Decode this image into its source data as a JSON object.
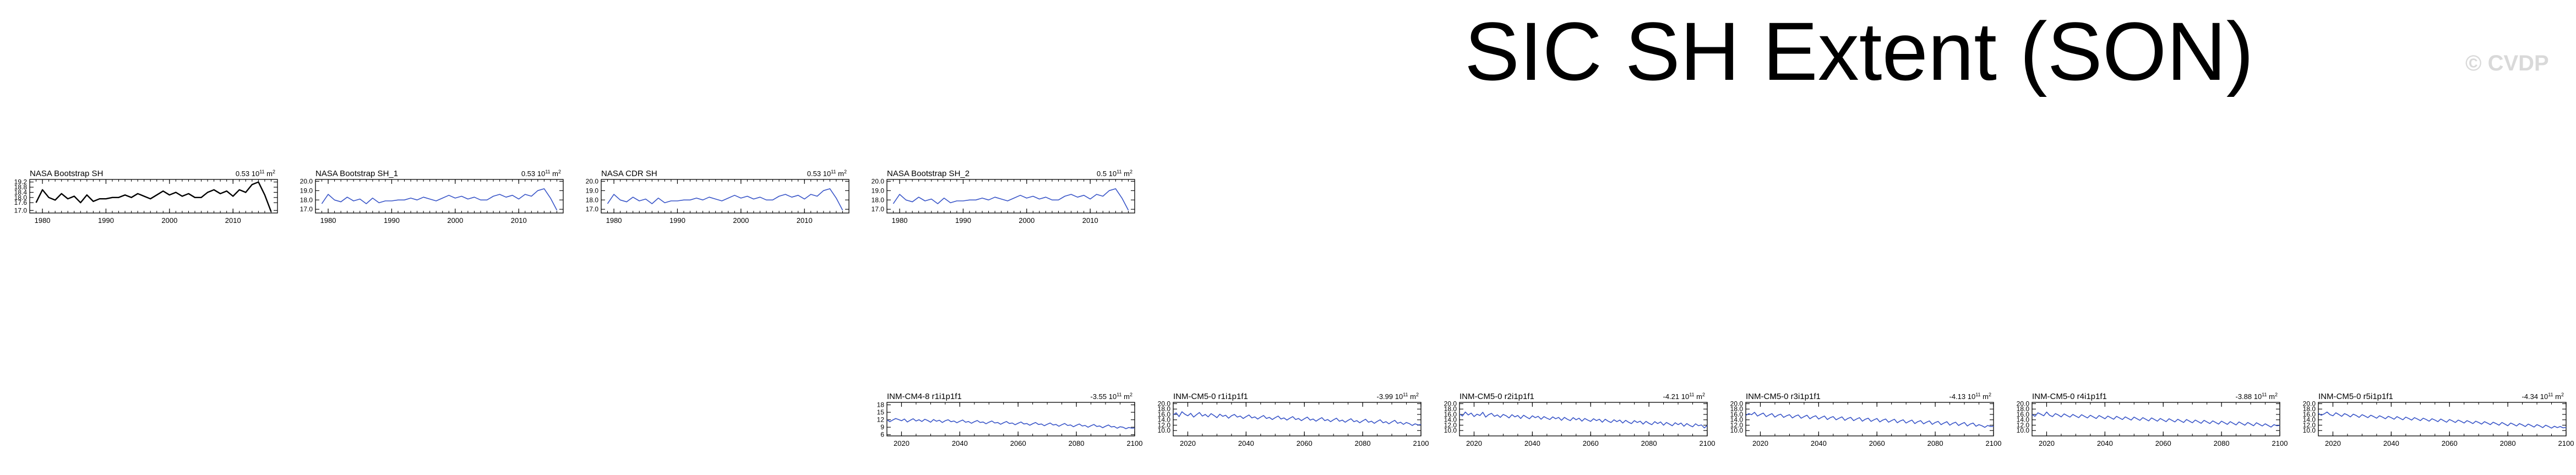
{
  "title": "SIC SH Extent (SON)",
  "watermark": "© CVDP",
  "colors": {
    "obs_reference": "#000000",
    "series": "#3a56c8"
  },
  "chart_data": [
    {
      "type": "line",
      "title": "NASA Bootstrap SH",
      "trend_label": "0.53 10¹¹ m²",
      "trend_base": "0.53 10",
      "trend_exp": "11",
      "trend_unit": " m",
      "trend_unit_exp": "2",
      "color": "#000000",
      "xlim": [
        1978,
        2017
      ],
      "ylim": [
        16.8,
        19.4
      ],
      "x_ticks": [
        1980,
        1990,
        2000,
        2010
      ],
      "y_ticks": [
        "17.0",
        "17.6",
        "18.0",
        "18.4",
        "18.8",
        "19.2"
      ],
      "x": [
        1979,
        1980,
        1981,
        1982,
        1983,
        1984,
        1985,
        1986,
        1987,
        1988,
        1989,
        1990,
        1991,
        1992,
        1993,
        1994,
        1995,
        1996,
        1997,
        1998,
        1999,
        2000,
        2001,
        2002,
        2003,
        2004,
        2005,
        2006,
        2007,
        2008,
        2009,
        2010,
        2011,
        2012,
        2013,
        2014,
        2015,
        2016
      ],
      "values": [
        17.6,
        18.6,
        18.0,
        17.8,
        18.3,
        17.9,
        18.1,
        17.6,
        18.2,
        17.7,
        17.9,
        17.9,
        18.0,
        18.0,
        18.2,
        18.0,
        18.3,
        18.1,
        17.9,
        18.2,
        18.5,
        18.2,
        18.4,
        18.1,
        18.3,
        18.0,
        18.0,
        18.4,
        18.6,
        18.3,
        18.5,
        18.1,
        18.6,
        18.4,
        19.0,
        19.2,
        18.2,
        16.9
      ]
    },
    {
      "type": "line",
      "title": "NASA Bootstrap SH_1",
      "trend_label": "0.53 10¹¹ m²",
      "trend_base": "0.53 10",
      "trend_exp": "11",
      "trend_unit": " m",
      "trend_unit_exp": "2",
      "color": "#3a56c8",
      "xlim": [
        1978,
        2017
      ],
      "ylim": [
        16.6,
        20.2
      ],
      "x_ticks": [
        1980,
        1990,
        2000,
        2010
      ],
      "y_ticks": [
        "17.0",
        "18.0",
        "19.0",
        "20.0"
      ],
      "x": [
        1979,
        1980,
        1981,
        1982,
        1983,
        1984,
        1985,
        1986,
        1987,
        1988,
        1989,
        1990,
        1991,
        1992,
        1993,
        1994,
        1995,
        1996,
        1997,
        1998,
        1999,
        2000,
        2001,
        2002,
        2003,
        2004,
        2005,
        2006,
        2007,
        2008,
        2009,
        2010,
        2011,
        2012,
        2013,
        2014,
        2015,
        2016
      ],
      "values": [
        17.6,
        18.6,
        18.0,
        17.8,
        18.3,
        17.9,
        18.1,
        17.6,
        18.2,
        17.7,
        17.9,
        17.9,
        18.0,
        18.0,
        18.2,
        18.0,
        18.3,
        18.1,
        17.9,
        18.2,
        18.5,
        18.2,
        18.4,
        18.1,
        18.3,
        18.0,
        18.0,
        18.4,
        18.6,
        18.3,
        18.5,
        18.1,
        18.6,
        18.4,
        19.0,
        19.2,
        18.2,
        16.9
      ]
    },
    {
      "type": "line",
      "title": "NASA CDR SH",
      "trend_label": "0.53 10¹¹ m²",
      "trend_base": "0.53 10",
      "trend_exp": "11",
      "trend_unit": " m",
      "trend_unit_exp": "2",
      "color": "#3a56c8",
      "xlim": [
        1978,
        2017
      ],
      "ylim": [
        16.6,
        20.2
      ],
      "x_ticks": [
        1980,
        1990,
        2000,
        2010
      ],
      "y_ticks": [
        "17.0",
        "18.0",
        "19.0",
        "20.0"
      ],
      "x": [
        1979,
        1980,
        1981,
        1982,
        1983,
        1984,
        1985,
        1986,
        1987,
        1988,
        1989,
        1990,
        1991,
        1992,
        1993,
        1994,
        1995,
        1996,
        1997,
        1998,
        1999,
        2000,
        2001,
        2002,
        2003,
        2004,
        2005,
        2006,
        2007,
        2008,
        2009,
        2010,
        2011,
        2012,
        2013,
        2014,
        2015,
        2016
      ],
      "values": [
        17.6,
        18.6,
        18.0,
        17.8,
        18.3,
        17.9,
        18.1,
        17.6,
        18.2,
        17.7,
        17.9,
        17.9,
        18.0,
        18.0,
        18.2,
        18.0,
        18.3,
        18.1,
        17.9,
        18.2,
        18.5,
        18.2,
        18.4,
        18.1,
        18.3,
        18.0,
        18.0,
        18.4,
        18.6,
        18.3,
        18.5,
        18.1,
        18.6,
        18.4,
        19.0,
        19.2,
        18.2,
        16.9
      ]
    },
    {
      "type": "line",
      "title": "NASA Bootstrap SH_2",
      "trend_label": "0.5 10¹¹ m²",
      "trend_base": "0.5 10",
      "trend_exp": "11",
      "trend_unit": " m",
      "trend_unit_exp": "2",
      "color": "#3a56c8",
      "xlim": [
        1978,
        2017
      ],
      "ylim": [
        16.6,
        20.2
      ],
      "x_ticks": [
        1980,
        1990,
        2000,
        2010
      ],
      "y_ticks": [
        "17.0",
        "18.0",
        "19.0",
        "20.0"
      ],
      "x": [
        1979,
        1980,
        1981,
        1982,
        1983,
        1984,
        1985,
        1986,
        1987,
        1988,
        1989,
        1990,
        1991,
        1992,
        1993,
        1994,
        1995,
        1996,
        1997,
        1998,
        1999,
        2000,
        2001,
        2002,
        2003,
        2004,
        2005,
        2006,
        2007,
        2008,
        2009,
        2010,
        2011,
        2012,
        2013,
        2014,
        2015,
        2016
      ],
      "values": [
        17.6,
        18.6,
        18.0,
        17.8,
        18.3,
        17.9,
        18.1,
        17.6,
        18.2,
        17.7,
        17.9,
        17.9,
        18.0,
        18.0,
        18.2,
        18.0,
        18.3,
        18.1,
        17.9,
        18.2,
        18.5,
        18.2,
        18.4,
        18.1,
        18.3,
        18.0,
        18.0,
        18.4,
        18.6,
        18.3,
        18.5,
        18.1,
        18.6,
        18.4,
        19.0,
        19.2,
        18.2,
        16.9
      ]
    },
    {
      "type": "line",
      "title": "INM-CM4-8 r1i1p1f1",
      "trend_label": "-3.55 10¹¹ m²",
      "trend_base": "-3.55 10",
      "trend_exp": "11",
      "trend_unit": " m",
      "trend_unit_exp": "2",
      "color": "#3a56c8",
      "xlim": [
        2015,
        2100
      ],
      "ylim": [
        5.5,
        19
      ],
      "x_ticks": [
        2020,
        2040,
        2060,
        2080,
        2100
      ],
      "y_ticks": [
        "6",
        "9",
        "12",
        "15",
        "18"
      ],
      "x_start": 2015,
      "values": [
        12.0,
        11.2,
        11.9,
        12.5,
        12.1,
        11.6,
        12.3,
        11.1,
        11.8,
        12.4,
        11.5,
        12.0,
        11.3,
        12.2,
        11.7,
        11.0,
        12.1,
        11.4,
        11.8,
        10.9,
        11.6,
        12.0,
        11.2,
        11.5,
        10.8,
        11.4,
        11.9,
        11.0,
        11.3,
        10.6,
        11.2,
        11.7,
        10.9,
        11.1,
        10.4,
        11.0,
        11.5,
        10.7,
        10.9,
        10.2,
        10.8,
        11.3,
        10.5,
        10.7,
        10.0,
        10.6,
        11.1,
        10.3,
        10.5,
        9.8,
        10.4,
        10.9,
        10.1,
        10.3,
        9.6,
        10.2,
        10.7,
        9.9,
        10.1,
        9.4,
        10.0,
        10.5,
        9.7,
        9.9,
        9.2,
        9.8,
        10.3,
        9.5,
        9.7,
        9.0,
        9.6,
        10.1,
        9.3,
        9.5,
        8.8,
        9.4,
        9.9,
        9.1,
        9.3,
        8.6,
        9.2,
        9.0,
        8.4,
        8.9,
        8.6,
        8.7
      ]
    },
    {
      "type": "line",
      "title": "INM-CM5-0 r1i1p1f1",
      "trend_label": "-3.99 10¹¹ m²",
      "trend_base": "-3.99 10",
      "trend_exp": "11",
      "trend_unit": " m",
      "trend_unit_exp": "2",
      "color": "#3a56c8",
      "xlim": [
        2015,
        2100
      ],
      "ylim": [
        8,
        20.5
      ],
      "x_ticks": [
        2020,
        2040,
        2060,
        2080,
        2100
      ],
      "y_ticks": [
        "10.0",
        "12.0",
        "14.0",
        "16.0",
        "18.0",
        "20.0"
      ],
      "x_start": 2015,
      "values": [
        15.8,
        16.6,
        15.2,
        17.0,
        16.1,
        15.5,
        16.4,
        15.0,
        15.9,
        16.7,
        15.4,
        16.0,
        15.1,
        16.3,
        15.6,
        14.8,
        16.1,
        15.3,
        15.7,
        14.6,
        15.5,
        16.0,
        15.0,
        15.4,
        14.5,
        15.2,
        15.8,
        14.7,
        15.1,
        14.3,
        15.0,
        15.6,
        14.5,
        14.9,
        14.1,
        14.8,
        15.4,
        14.3,
        14.7,
        13.9,
        14.6,
        15.2,
        14.1,
        14.5,
        13.7,
        14.4,
        15.0,
        13.9,
        14.3,
        13.5,
        14.2,
        14.8,
        13.7,
        14.1,
        13.3,
        14.0,
        14.6,
        13.5,
        13.9,
        13.1,
        13.8,
        14.4,
        13.3,
        13.7,
        12.9,
        13.6,
        14.2,
        13.1,
        13.5,
        12.7,
        13.4,
        14.0,
        12.9,
        13.3,
        12.5,
        13.2,
        13.8,
        12.7,
        13.1,
        12.3,
        13.0,
        12.6,
        11.9,
        12.5,
        12.1,
        12.2
      ]
    },
    {
      "type": "line",
      "title": "INM-CM5-0 r2i1p1f1",
      "trend_label": "-4.21 10¹¹ m²",
      "trend_base": "-4.21 10",
      "trend_exp": "11",
      "trend_unit": " m",
      "trend_unit_exp": "2",
      "color": "#3a56c8",
      "xlim": [
        2015,
        2100
      ],
      "ylim": [
        8,
        20.5
      ],
      "x_ticks": [
        2020,
        2040,
        2060,
        2080,
        2100
      ],
      "y_ticks": [
        "10.0",
        "12.0",
        "14.0",
        "16.0",
        "18.0",
        "20.0"
      ],
      "x_start": 2015,
      "values": [
        16.2,
        15.4,
        16.9,
        15.8,
        16.5,
        15.2,
        16.1,
        15.6,
        16.8,
        15.0,
        15.9,
        16.4,
        15.3,
        15.8,
        14.9,
        16.0,
        15.5,
        14.7,
        15.9,
        15.1,
        15.6,
        14.5,
        15.7,
        15.0,
        14.4,
        15.5,
        14.8,
        15.3,
        14.2,
        15.2,
        14.6,
        14.1,
        15.1,
        14.4,
        14.9,
        13.8,
        14.9,
        14.2,
        13.7,
        14.8,
        14.0,
        14.6,
        13.5,
        14.5,
        13.9,
        13.4,
        14.4,
        13.7,
        14.2,
        13.1,
        14.2,
        13.5,
        13.0,
        14.0,
        13.3,
        13.9,
        12.8,
        13.8,
        13.1,
        12.6,
        13.7,
        13.0,
        13.5,
        12.4,
        13.4,
        12.7,
        12.2,
        13.3,
        12.6,
        13.2,
        12.0,
        13.0,
        12.4,
        11.8,
        12.9,
        12.2,
        12.8,
        11.6,
        12.6,
        11.9,
        11.4,
        12.5,
        11.8,
        12.1,
        11.0,
        11.9
      ]
    },
    {
      "type": "line",
      "title": "INM-CM5-0 r3i1p1f1",
      "trend_label": "-4.13 10¹¹ m²",
      "trend_base": "-4.13 10",
      "trend_exp": "11",
      "trend_unit": " m",
      "trend_unit_exp": "2",
      "color": "#3a56c8",
      "xlim": [
        2015,
        2100
      ],
      "ylim": [
        8,
        20.5
      ],
      "x_ticks": [
        2020,
        2040,
        2060,
        2080,
        2100
      ],
      "y_ticks": [
        "10.0",
        "12.0",
        "14.0",
        "16.0",
        "18.0",
        "20.0"
      ],
      "x_start": 2015,
      "values": [
        15.6,
        16.3,
        15.9,
        16.8,
        15.4,
        16.0,
        16.5,
        15.2,
        15.8,
        16.3,
        15.0,
        15.7,
        16.1,
        14.9,
        15.5,
        15.9,
        14.7,
        15.4,
        15.8,
        14.6,
        15.2,
        15.7,
        14.4,
        15.1,
        15.5,
        14.3,
        14.9,
        15.4,
        14.1,
        14.8,
        15.2,
        14.0,
        14.6,
        15.1,
        13.8,
        14.5,
        14.9,
        13.7,
        14.3,
        14.8,
        13.5,
        14.2,
        14.6,
        13.4,
        14.0,
        14.5,
        13.2,
        13.9,
        14.3,
        13.1,
        13.7,
        14.2,
        12.9,
        13.6,
        14.0,
        12.8,
        13.4,
        13.9,
        12.6,
        13.3,
        13.7,
        12.5,
        13.1,
        13.6,
        12.3,
        13.0,
        13.4,
        12.2,
        12.8,
        13.3,
        12.0,
        12.7,
        13.1,
        11.9,
        12.5,
        13.0,
        11.7,
        12.4,
        12.8,
        11.6,
        12.2,
        11.8,
        11.2,
        11.9,
        11.5,
        11.6
      ]
    },
    {
      "type": "line",
      "title": "INM-CM5-0 r4i1p1f1",
      "trend_label": "-3.88 10¹¹ m²",
      "trend_base": "-3.88 10",
      "trend_exp": "11",
      "trend_unit": " m",
      "trend_unit_exp": "2",
      "color": "#3a56c8",
      "xlim": [
        2015,
        2100
      ],
      "ylim": [
        8,
        20.5
      ],
      "x_ticks": [
        2020,
        2040,
        2060,
        2080,
        2100
      ],
      "y_ticks": [
        "10.0",
        "12.0",
        "14.0",
        "16.0",
        "18.0",
        "20.0"
      ],
      "x_start": 2015,
      "values": [
        16.0,
        15.3,
        16.6,
        16.1,
        15.5,
        16.9,
        15.7,
        15.2,
        16.3,
        15.8,
        15.1,
        16.2,
        15.6,
        15.0,
        16.0,
        15.4,
        14.8,
        15.9,
        15.3,
        14.7,
        15.7,
        15.1,
        14.5,
        15.6,
        15.0,
        14.4,
        15.4,
        14.8,
        14.2,
        15.3,
        14.7,
        14.1,
        15.1,
        14.5,
        13.9,
        15.0,
        14.4,
        13.8,
        14.8,
        14.2,
        13.6,
        14.7,
        14.1,
        13.5,
        14.5,
        13.9,
        13.3,
        14.4,
        13.8,
        13.2,
        14.2,
        13.6,
        13.0,
        14.1,
        13.5,
        12.9,
        13.9,
        13.3,
        12.7,
        13.8,
        13.2,
        12.6,
        13.6,
        13.0,
        12.4,
        13.5,
        12.9,
        12.3,
        13.3,
        12.7,
        12.1,
        13.2,
        12.6,
        12.0,
        13.0,
        12.4,
        11.8,
        12.9,
        12.3,
        11.7,
        12.5,
        11.9,
        11.3,
        12.2,
        11.8,
        11.9
      ]
    },
    {
      "type": "line",
      "title": "INM-CM5-0 r5i1p1f1",
      "trend_label": "-4.34 10¹¹ m²",
      "trend_base": "-4.34 10",
      "trend_exp": "11",
      "trend_unit": " m",
      "trend_unit_exp": "2",
      "color": "#3a56c8",
      "xlim": [
        2015,
        2100
      ],
      "ylim": [
        8,
        20.5
      ],
      "x_ticks": [
        2020,
        2040,
        2060,
        2080,
        2100
      ],
      "y_ticks": [
        "10.0",
        "12.0",
        "14.0",
        "16.0",
        "18.0",
        "20.0"
      ],
      "x_start": 2015,
      "values": [
        16.4,
        15.7,
        16.2,
        16.9,
        15.9,
        15.5,
        16.6,
        16.0,
        15.3,
        16.3,
        15.8,
        15.1,
        16.1,
        15.6,
        14.9,
        15.9,
        15.4,
        14.8,
        15.7,
        15.2,
        14.6,
        15.5,
        15.0,
        14.4,
        15.3,
        14.8,
        14.2,
        15.2,
        14.6,
        14.0,
        15.0,
        14.5,
        13.9,
        14.8,
        14.3,
        13.7,
        14.6,
        14.1,
        13.5,
        14.4,
        13.9,
        13.3,
        14.3,
        13.7,
        13.1,
        14.1,
        13.6,
        13.0,
        13.9,
        13.4,
        12.8,
        13.7,
        13.2,
        12.6,
        13.5,
        13.0,
        12.4,
        13.3,
        12.8,
        12.2,
        13.1,
        12.6,
        12.0,
        13.0,
        12.4,
        11.8,
        12.8,
        12.3,
        11.7,
        12.6,
        12.1,
        11.5,
        12.4,
        11.9,
        11.3,
        12.2,
        11.7,
        11.1,
        12.0,
        11.5,
        10.9,
        11.6,
        11.1,
        11.5,
        11.0,
        11.2
      ]
    }
  ]
}
